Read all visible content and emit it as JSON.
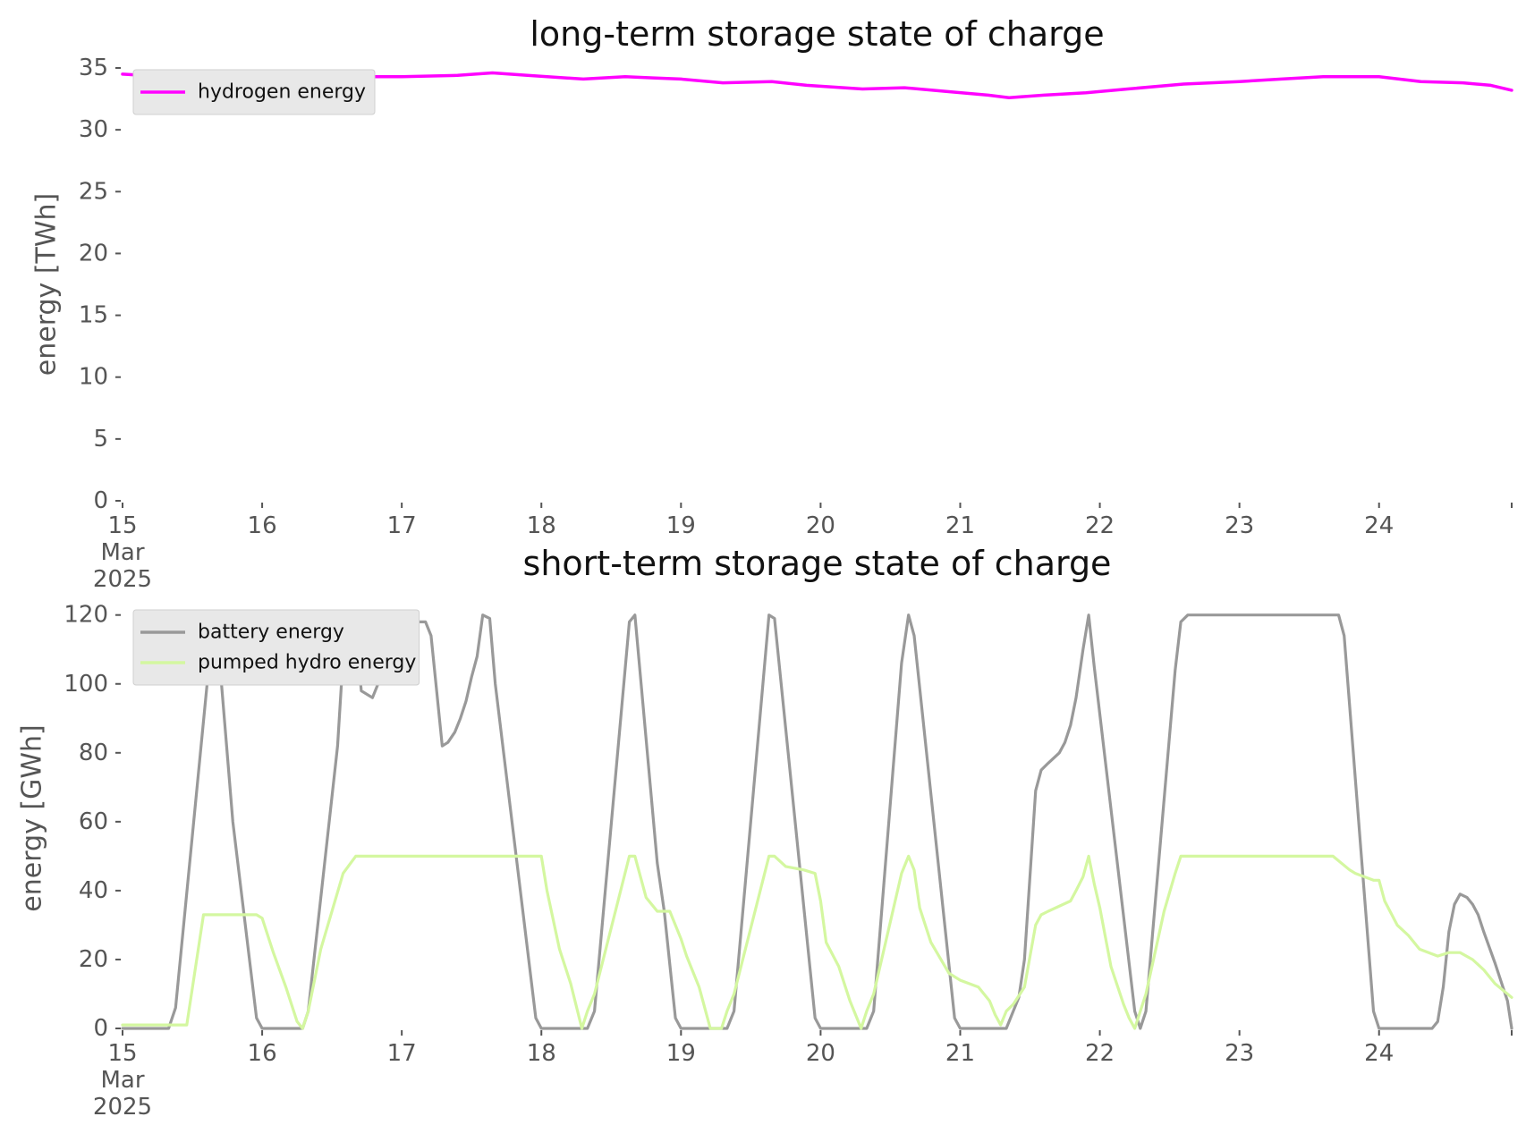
{
  "chart_data": [
    {
      "type": "line",
      "title": "long-term storage state of charge",
      "xlabel": "",
      "ylabel": "energy [TWh]",
      "ylim": [
        0,
        35
      ],
      "yticks": [
        0,
        5,
        10,
        15,
        20,
        25,
        30,
        35
      ],
      "xlim": [
        15,
        24.95
      ],
      "xticks": [
        {
          "value": 15,
          "label": "15",
          "sub1": "Mar",
          "sub2": "2025"
        },
        {
          "value": 16,
          "label": "16"
        },
        {
          "value": 17,
          "label": "17"
        },
        {
          "value": 18,
          "label": "18"
        },
        {
          "value": 19,
          "label": "19"
        },
        {
          "value": 20,
          "label": "20"
        },
        {
          "value": 21,
          "label": "21"
        },
        {
          "value": 22,
          "label": "22"
        },
        {
          "value": 23,
          "label": "23"
        },
        {
          "value": 24,
          "label": "24"
        }
      ],
      "grid": false,
      "legend_position": "top-left",
      "series": [
        {
          "name": "hydrogen energy",
          "color": "#ff00ff",
          "x": [
            15,
            15.3,
            15.6,
            15.9,
            16.3,
            16.7,
            17.0,
            17.4,
            17.65,
            17.9,
            18.3,
            18.6,
            18.8,
            19.0,
            19.3,
            19.65,
            19.9,
            20.3,
            20.6,
            20.9,
            21.2,
            21.35,
            21.6,
            21.9,
            22.2,
            22.6,
            23.0,
            23.3,
            23.6,
            23.8,
            24.0,
            24.3,
            24.6,
            24.8,
            24.95
          ],
          "values": [
            34.5,
            34.3,
            34.3,
            34.3,
            34.3,
            34.3,
            34.3,
            34.4,
            34.6,
            34.4,
            34.1,
            34.3,
            34.2,
            34.1,
            33.8,
            33.9,
            33.6,
            33.3,
            33.4,
            33.1,
            32.8,
            32.6,
            32.8,
            33.0,
            33.3,
            33.7,
            33.9,
            34.1,
            34.3,
            34.3,
            34.3,
            33.9,
            33.8,
            33.6,
            33.2
          ]
        }
      ]
    },
    {
      "type": "line",
      "title": "short-term storage state of charge",
      "xlabel": "",
      "ylabel": "energy [GWh]",
      "ylim": [
        0,
        122
      ],
      "yticks": [
        0,
        20,
        40,
        60,
        80,
        100,
        120
      ],
      "xlim": [
        15,
        24.95
      ],
      "xticks": [
        {
          "value": 15,
          "label": "15",
          "sub1": "Mar",
          "sub2": "2025"
        },
        {
          "value": 16,
          "label": "16"
        },
        {
          "value": 17,
          "label": "17"
        },
        {
          "value": 18,
          "label": "18"
        },
        {
          "value": 19,
          "label": "19"
        },
        {
          "value": 20,
          "label": "20"
        },
        {
          "value": 21,
          "label": "21"
        },
        {
          "value": 22,
          "label": "22"
        },
        {
          "value": 23,
          "label": "23"
        },
        {
          "value": 24,
          "label": "24"
        }
      ],
      "grid": false,
      "legend_position": "top-left",
      "series": [
        {
          "name": "battery energy",
          "color": "#999999",
          "x": [
            15,
            15.33,
            15.38,
            15.63,
            15.67,
            15.79,
            15.96,
            16.0,
            16.29,
            16.33,
            16.54,
            16.58,
            16.63,
            16.67,
            16.71,
            16.79,
            16.83,
            16.88,
            16.92,
            16.96,
            17.17,
            17.21,
            17.29,
            17.33,
            17.38,
            17.42,
            17.46,
            17.5,
            17.54,
            17.58,
            17.63,
            17.67,
            17.96,
            18.0,
            18.33,
            18.38,
            18.63,
            18.67,
            18.83,
            18.88,
            18.96,
            19.0,
            19.33,
            19.38,
            19.63,
            19.67,
            19.96,
            20.0,
            20.33,
            20.38,
            20.58,
            20.63,
            20.67,
            20.96,
            21.0,
            21.33,
            21.38,
            21.42,
            21.46,
            21.54,
            21.58,
            21.63,
            21.71,
            21.75,
            21.79,
            21.83,
            21.88,
            21.92,
            21.96,
            22.25,
            22.29,
            22.33,
            22.54,
            22.58,
            22.63,
            22.67,
            23.0,
            23.5,
            23.67,
            23.71,
            23.75,
            23.96,
            24.0,
            24.38,
            24.42,
            24.46,
            24.5,
            24.54,
            24.58,
            24.63,
            24.67,
            24.71,
            24.75,
            24.83,
            24.92,
            24.95
          ],
          "values": [
            0,
            0,
            6,
            110,
            119,
            60,
            3,
            0,
            0,
            5,
            82,
            108,
            119,
            116,
            98,
            96,
            100,
            106,
            117,
            118,
            118,
            114,
            82,
            83,
            86,
            90,
            95,
            102,
            108,
            120,
            119,
            100,
            3,
            0,
            0,
            5,
            118,
            120,
            48,
            34,
            3,
            0,
            0,
            5,
            120,
            119,
            3,
            0,
            0,
            5,
            106,
            120,
            114,
            3,
            0,
            0,
            5,
            9,
            20,
            69,
            75,
            77,
            80,
            83,
            88,
            96,
            110,
            120,
            105,
            5,
            0,
            5,
            104,
            118,
            120,
            120,
            120,
            120,
            120,
            120,
            114,
            5,
            0,
            0,
            2,
            12,
            28,
            36,
            39,
            38,
            36,
            33,
            28,
            19,
            8,
            0
          ]
        },
        {
          "name": "pumped hydro energy",
          "color": "#d4f7a0",
          "x": [
            15,
            15.42,
            15.46,
            15.58,
            15.96,
            16.0,
            16.08,
            16.17,
            16.25,
            16.29,
            16.33,
            16.42,
            16.58,
            16.67,
            17.5,
            18.0,
            18.04,
            18.13,
            18.21,
            18.29,
            18.33,
            18.38,
            18.63,
            18.67,
            18.75,
            18.83,
            18.88,
            18.92,
            19.0,
            19.04,
            19.08,
            19.13,
            19.21,
            19.29,
            19.33,
            19.38,
            19.63,
            19.67,
            19.75,
            19.88,
            19.96,
            20.0,
            20.04,
            20.13,
            20.21,
            20.29,
            20.33,
            20.38,
            20.58,
            20.63,
            20.67,
            20.71,
            20.79,
            20.92,
            21.0,
            21.13,
            21.21,
            21.25,
            21.29,
            21.33,
            21.38,
            21.46,
            21.54,
            21.58,
            21.63,
            21.79,
            21.83,
            21.88,
            21.92,
            21.96,
            22.0,
            22.08,
            22.17,
            22.21,
            22.25,
            22.29,
            22.33,
            22.46,
            22.54,
            22.58,
            22.63,
            22.67,
            23.0,
            23.5,
            23.67,
            23.79,
            23.83,
            23.96,
            24.0,
            24.04,
            24.13,
            24.21,
            24.29,
            24.42,
            24.5,
            24.58,
            24.67,
            24.75,
            24.83,
            24.95
          ],
          "values": [
            1,
            1,
            1,
            33,
            33,
            32,
            22,
            12,
            2,
            0,
            5,
            23,
            45,
            50,
            50,
            50,
            40,
            23,
            13,
            0,
            5,
            10,
            50,
            50,
            38,
            34,
            34,
            34,
            26,
            21,
            17,
            12,
            0,
            0,
            5,
            10,
            50,
            50,
            47,
            46,
            45,
            37,
            25,
            18,
            8,
            0,
            5,
            10,
            45,
            50,
            46,
            35,
            25,
            16,
            14,
            12,
            8,
            4,
            1,
            5,
            7,
            12,
            30,
            33,
            34,
            37,
            40,
            44,
            50,
            42,
            35,
            18,
            7,
            3,
            0,
            5,
            10,
            34,
            45,
            50,
            50,
            50,
            50,
            50,
            50,
            46,
            45,
            43,
            43,
            37,
            30,
            27,
            23,
            21,
            22,
            22,
            20,
            17,
            13,
            9
          ]
        }
      ]
    }
  ]
}
